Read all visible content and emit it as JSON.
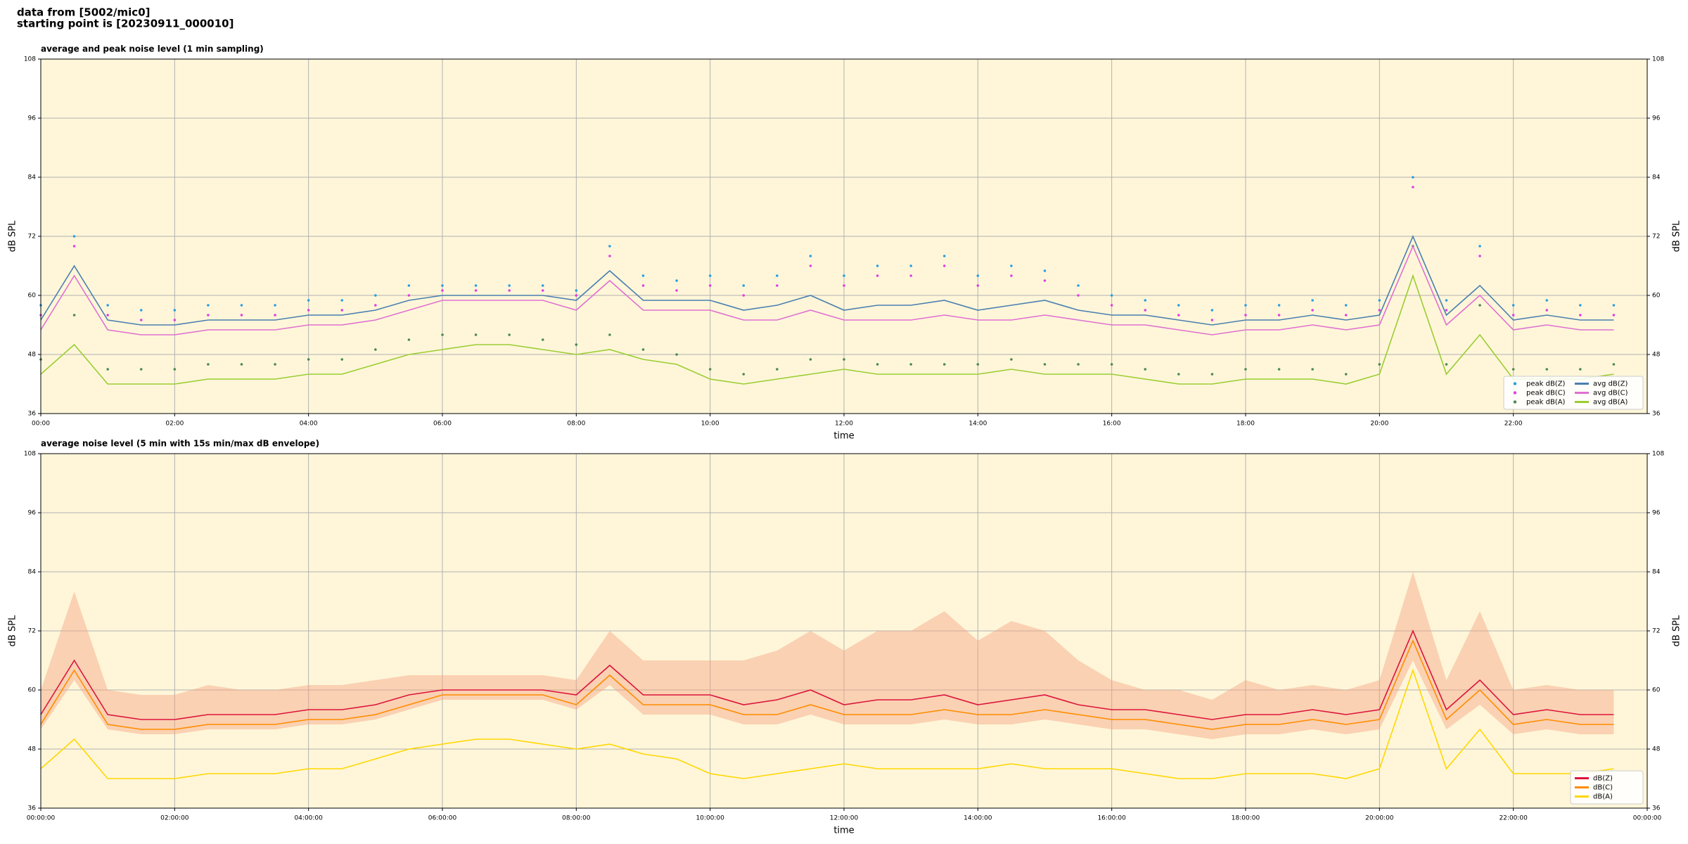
{
  "header": {
    "lines": [
      "data from [5002/mic0]",
      "starting point is [20230911_000010]"
    ]
  },
  "chart_data": [
    {
      "type": "line",
      "title": "average and peak noise level (1 min sampling)",
      "xlabel": "time",
      "ylabel": "dB SPL",
      "x": [
        0,
        30,
        60,
        90,
        120,
        150,
        180,
        210,
        240,
        270,
        300,
        330,
        360,
        390,
        420,
        450,
        480,
        510,
        540,
        570,
        600,
        630,
        660,
        690,
        720,
        750,
        780,
        810,
        840,
        870,
        900,
        930,
        960,
        990,
        1020,
        1050,
        1080,
        1110,
        1140,
        1170,
        1200,
        1230,
        1260,
        1290,
        1320,
        1350,
        1380,
        1410
      ],
      "xlim": [
        0,
        1440
      ],
      "xticks": [
        {
          "value": 0,
          "label": "00:00"
        },
        {
          "value": 120,
          "label": "02:00"
        },
        {
          "value": 240,
          "label": "04:00"
        },
        {
          "value": 360,
          "label": "06:00"
        },
        {
          "value": 480,
          "label": "08:00"
        },
        {
          "value": 600,
          "label": "10:00"
        },
        {
          "value": 720,
          "label": "12:00"
        },
        {
          "value": 840,
          "label": "14:00"
        },
        {
          "value": 960,
          "label": "16:00"
        },
        {
          "value": 1080,
          "label": "18:00"
        },
        {
          "value": 1200,
          "label": "20:00"
        },
        {
          "value": 1320,
          "label": "22:00"
        }
      ],
      "ylim": [
        36,
        108
      ],
      "yticks": [
        36,
        48,
        60,
        72,
        84,
        96,
        108
      ],
      "grid": true,
      "legend": "lower right",
      "legend_ncol": 2,
      "series": [
        {
          "name": "peak dB(Z)",
          "style": "points",
          "color": "#2a9fe0",
          "values": [
            58,
            72,
            58,
            57,
            57,
            58,
            58,
            58,
            59,
            59,
            60,
            62,
            62,
            62,
            62,
            62,
            61,
            70,
            64,
            63,
            64,
            62,
            64,
            68,
            64,
            66,
            66,
            68,
            64,
            66,
            65,
            62,
            60,
            59,
            58,
            57,
            58,
            58,
            59,
            58,
            59,
            84,
            59,
            70,
            58,
            59,
            58,
            58
          ]
        },
        {
          "name": "peak dB(C)",
          "style": "points",
          "color": "#e040e0",
          "values": [
            56,
            70,
            56,
            55,
            55,
            56,
            56,
            56,
            57,
            57,
            58,
            60,
            61,
            61,
            61,
            61,
            60,
            68,
            62,
            61,
            62,
            60,
            62,
            66,
            62,
            64,
            64,
            66,
            62,
            64,
            63,
            60,
            58,
            57,
            56,
            55,
            56,
            56,
            57,
            56,
            57,
            82,
            57,
            68,
            56,
            57,
            56,
            56
          ]
        },
        {
          "name": "peak dB(A)",
          "style": "points",
          "color": "#4a8a50",
          "values": [
            47,
            56,
            45,
            45,
            45,
            46,
            46,
            46,
            47,
            47,
            49,
            51,
            52,
            52,
            52,
            51,
            50,
            52,
            49,
            48,
            45,
            44,
            45,
            47,
            47,
            46,
            46,
            46,
            46,
            47,
            46,
            46,
            46,
            45,
            44,
            44,
            45,
            45,
            45,
            44,
            46,
            70,
            46,
            58,
            45,
            45,
            45,
            46
          ]
        },
        {
          "name": "avg dB(Z)",
          "style": "line",
          "color": "#4a7fb0",
          "values": [
            55,
            66,
            55,
            54,
            54,
            55,
            55,
            55,
            56,
            56,
            57,
            59,
            60,
            60,
            60,
            60,
            59,
            65,
            59,
            59,
            59,
            57,
            58,
            60,
            57,
            58,
            58,
            59,
            57,
            58,
            59,
            57,
            56,
            56,
            55,
            54,
            55,
            55,
            56,
            55,
            56,
            72,
            56,
            62,
            55,
            56,
            55,
            55
          ]
        },
        {
          "name": "avg dB(C)",
          "style": "line",
          "color": "#e070d0",
          "values": [
            53,
            64,
            53,
            52,
            52,
            53,
            53,
            53,
            54,
            54,
            55,
            57,
            59,
            59,
            59,
            59,
            57,
            63,
            57,
            57,
            57,
            55,
            55,
            57,
            55,
            55,
            55,
            56,
            55,
            55,
            56,
            55,
            54,
            54,
            53,
            52,
            53,
            53,
            54,
            53,
            54,
            70,
            54,
            60,
            53,
            54,
            53,
            53
          ]
        },
        {
          "name": "avg dB(A)",
          "style": "line",
          "color": "#9acd32",
          "values": [
            44,
            50,
            42,
            42,
            42,
            43,
            43,
            43,
            44,
            44,
            46,
            48,
            49,
            50,
            50,
            49,
            48,
            49,
            47,
            46,
            43,
            42,
            43,
            44,
            45,
            44,
            44,
            44,
            44,
            45,
            44,
            44,
            44,
            43,
            42,
            42,
            43,
            43,
            43,
            42,
            44,
            64,
            44,
            52,
            43,
            43,
            43,
            44
          ]
        }
      ]
    },
    {
      "type": "line",
      "title": "average noise level (5 min with 15s min/max dB envelope)",
      "xlabel": "time",
      "ylabel": "dB SPL",
      "x": [
        0,
        30,
        60,
        90,
        120,
        150,
        180,
        210,
        240,
        270,
        300,
        330,
        360,
        390,
        420,
        450,
        480,
        510,
        540,
        570,
        600,
        630,
        660,
        690,
        720,
        750,
        780,
        810,
        840,
        870,
        900,
        930,
        960,
        990,
        1020,
        1050,
        1080,
        1110,
        1140,
        1170,
        1200,
        1230,
        1260,
        1290,
        1320,
        1350,
        1380,
        1410
      ],
      "xlim": [
        0,
        1440
      ],
      "xticks": [
        {
          "value": 0,
          "label": "00:00:00"
        },
        {
          "value": 120,
          "label": "02:00:00"
        },
        {
          "value": 240,
          "label": "04:00:00"
        },
        {
          "value": 360,
          "label": "06:00:00"
        },
        {
          "value": 480,
          "label": "08:00:00"
        },
        {
          "value": 600,
          "label": "10:00:00"
        },
        {
          "value": 720,
          "label": "12:00:00"
        },
        {
          "value": 840,
          "label": "14:00:00"
        },
        {
          "value": 960,
          "label": "16:00:00"
        },
        {
          "value": 1080,
          "label": "18:00:00"
        },
        {
          "value": 1200,
          "label": "20:00:00"
        },
        {
          "value": 1320,
          "label": "22:00:00"
        },
        {
          "value": 1440,
          "label": "00:00:00"
        }
      ],
      "ylim": [
        36,
        108
      ],
      "yticks": [
        36,
        48,
        60,
        72,
        84,
        96,
        108
      ],
      "grid": true,
      "legend": "lower right",
      "legend_ncol": 1,
      "envelope": {
        "color": "#f4a582",
        "upper": [
          60,
          80,
          60,
          59,
          59,
          61,
          60,
          60,
          61,
          61,
          62,
          63,
          63,
          63,
          63,
          63,
          62,
          72,
          66,
          66,
          66,
          66,
          68,
          72,
          68,
          72,
          72,
          76,
          70,
          74,
          72,
          66,
          62,
          60,
          60,
          58,
          62,
          60,
          61,
          60,
          62,
          84,
          62,
          76,
          60,
          61,
          60,
          60
        ],
        "lower": [
          52,
          62,
          52,
          51,
          51,
          52,
          52,
          52,
          53,
          53,
          54,
          56,
          58,
          58,
          58,
          58,
          56,
          61,
          55,
          55,
          55,
          53,
          53,
          55,
          53,
          53,
          53,
          54,
          53,
          53,
          54,
          53,
          52,
          52,
          51,
          50,
          51,
          51,
          52,
          51,
          52,
          66,
          52,
          57,
          51,
          52,
          51,
          51
        ]
      },
      "series": [
        {
          "name": "dB(Z)",
          "style": "line",
          "color": "#dc143c",
          "values": [
            55,
            66,
            55,
            54,
            54,
            55,
            55,
            55,
            56,
            56,
            57,
            59,
            60,
            60,
            60,
            60,
            59,
            65,
            59,
            59,
            59,
            57,
            58,
            60,
            57,
            58,
            58,
            59,
            57,
            58,
            59,
            57,
            56,
            56,
            55,
            54,
            55,
            55,
            56,
            55,
            56,
            72,
            56,
            62,
            55,
            56,
            55,
            55
          ]
        },
        {
          "name": "dB(C)",
          "style": "line",
          "color": "#ff8c00",
          "values": [
            53,
            64,
            53,
            52,
            52,
            53,
            53,
            53,
            54,
            54,
            55,
            57,
            59,
            59,
            59,
            59,
            57,
            63,
            57,
            57,
            57,
            55,
            55,
            57,
            55,
            55,
            55,
            56,
            55,
            55,
            56,
            55,
            54,
            54,
            53,
            52,
            53,
            53,
            54,
            53,
            54,
            70,
            54,
            60,
            53,
            54,
            53,
            53
          ]
        },
        {
          "name": "dB(A)",
          "style": "line",
          "color": "#ffd700",
          "values": [
            44,
            50,
            42,
            42,
            42,
            43,
            43,
            43,
            44,
            44,
            46,
            48,
            49,
            50,
            50,
            49,
            48,
            49,
            47,
            46,
            43,
            42,
            43,
            44,
            45,
            44,
            44,
            44,
            44,
            45,
            44,
            44,
            44,
            43,
            42,
            42,
            43,
            43,
            43,
            42,
            44,
            64,
            44,
            52,
            43,
            43,
            43,
            44
          ]
        }
      ]
    }
  ]
}
